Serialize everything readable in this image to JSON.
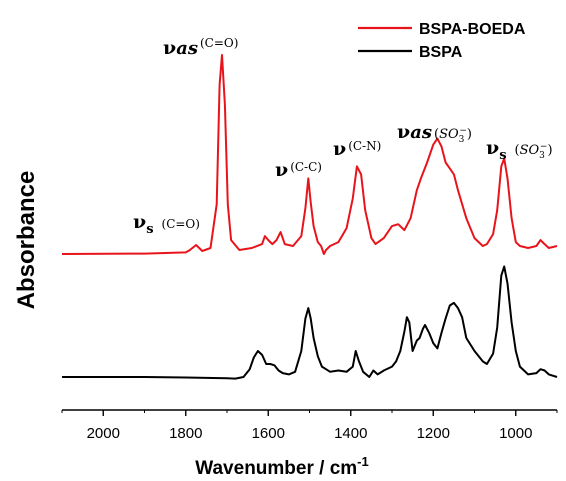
{
  "chart_data": {
    "type": "line",
    "xlabel": "Wavenumber / cm",
    "xlabel_superscript": "-1",
    "ylabel": "Absorbance",
    "xlim": [
      2100,
      900
    ],
    "x_reversed": true,
    "y_ticks_shown": false,
    "grid": false,
    "legend_position": "top-right",
    "xticks": [
      2000,
      1800,
      1600,
      1400,
      1200,
      1000
    ],
    "xtick_labels": [
      "2000",
      "1800",
      "1600",
      "1400",
      "1200",
      "1000"
    ],
    "series": [
      {
        "name": "BSPA-BOEDA",
        "color": "#e8141b",
        "offset": 1.0,
        "x": [
          2100,
          1900,
          1800,
          1790,
          1775,
          1760,
          1740,
          1725,
          1718,
          1712,
          1705,
          1698,
          1690,
          1670,
          1640,
          1615,
          1608,
          1600,
          1590,
          1580,
          1570,
          1560,
          1540,
          1520,
          1510,
          1503,
          1497,
          1490,
          1480,
          1472,
          1465,
          1460,
          1450,
          1430,
          1410,
          1395,
          1385,
          1375,
          1365,
          1350,
          1340,
          1320,
          1300,
          1285,
          1270,
          1255,
          1240,
          1230,
          1215,
          1200,
          1190,
          1180,
          1170,
          1160,
          1150,
          1140,
          1120,
          1100,
          1080,
          1070,
          1055,
          1045,
          1035,
          1028,
          1020,
          1010,
          1000,
          990,
          970,
          950,
          940,
          930,
          920,
          900
        ],
        "y": [
          0.0,
          0.002,
          0.008,
          0.02,
          0.045,
          0.015,
          0.03,
          0.25,
          0.85,
          1.0,
          0.75,
          0.25,
          0.07,
          0.02,
          0.03,
          0.05,
          0.09,
          0.07,
          0.05,
          0.07,
          0.11,
          0.05,
          0.04,
          0.09,
          0.23,
          0.38,
          0.26,
          0.14,
          0.06,
          0.04,
          0.0,
          0.02,
          0.04,
          0.06,
          0.13,
          0.28,
          0.44,
          0.4,
          0.22,
          0.08,
          0.05,
          0.08,
          0.14,
          0.15,
          0.12,
          0.18,
          0.32,
          0.38,
          0.46,
          0.55,
          0.58,
          0.54,
          0.46,
          0.43,
          0.4,
          0.32,
          0.18,
          0.08,
          0.04,
          0.05,
          0.1,
          0.22,
          0.44,
          0.48,
          0.38,
          0.18,
          0.06,
          0.04,
          0.03,
          0.04,
          0.07,
          0.05,
          0.03,
          0.04
        ]
      },
      {
        "name": "BSPA",
        "color": "#000000",
        "offset": 0.0,
        "x": [
          2100,
          1900,
          1800,
          1700,
          1680,
          1660,
          1645,
          1635,
          1625,
          1615,
          1605,
          1595,
          1585,
          1575,
          1565,
          1550,
          1535,
          1520,
          1510,
          1503,
          1497,
          1490,
          1480,
          1470,
          1460,
          1450,
          1430,
          1410,
          1395,
          1388,
          1380,
          1370,
          1355,
          1345,
          1335,
          1320,
          1300,
          1290,
          1280,
          1270,
          1264,
          1258,
          1250,
          1240,
          1233,
          1225,
          1220,
          1210,
          1200,
          1190,
          1180,
          1170,
          1160,
          1150,
          1140,
          1130,
          1120,
          1100,
          1080,
          1070,
          1055,
          1045,
          1035,
          1028,
          1020,
          1010,
          1000,
          990,
          970,
          950,
          940,
          930,
          920,
          900
        ],
        "y": [
          0.0,
          0.0,
          -0.004,
          -0.01,
          -0.012,
          0.0,
          0.06,
          0.15,
          0.2,
          0.17,
          0.1,
          0.1,
          0.09,
          0.05,
          0.03,
          0.02,
          0.04,
          0.2,
          0.45,
          0.53,
          0.45,
          0.3,
          0.16,
          0.08,
          0.06,
          0.04,
          0.05,
          0.04,
          0.08,
          0.2,
          0.12,
          0.04,
          0.0,
          0.05,
          0.02,
          0.05,
          0.08,
          0.12,
          0.2,
          0.35,
          0.46,
          0.42,
          0.2,
          0.28,
          0.3,
          0.37,
          0.4,
          0.34,
          0.26,
          0.22,
          0.34,
          0.45,
          0.55,
          0.57,
          0.53,
          0.46,
          0.3,
          0.2,
          0.12,
          0.1,
          0.18,
          0.38,
          0.78,
          0.85,
          0.72,
          0.42,
          0.2,
          0.08,
          0.02,
          0.03,
          0.06,
          0.05,
          0.02,
          0.0
        ]
      }
    ],
    "annotations": [
      {
        "symbol": "ν",
        "sub": "s",
        "group": "(C=O)",
        "x": 1790,
        "series": "BSPA-BOEDA"
      },
      {
        "symbol": "ν",
        "sub": "as",
        "group": "(C=O)",
        "x": 1712,
        "series": "BSPA-BOEDA"
      },
      {
        "symbol": "ν",
        "sub": "",
        "group": "(C-C)",
        "x": 1503,
        "series": "BSPA-BOEDA"
      },
      {
        "symbol": "ν",
        "sub": "",
        "group": "(C-N)",
        "x": 1385,
        "series": "BSPA-BOEDA"
      },
      {
        "symbol": "ν",
        "sub": "as",
        "group": "(SO3-)",
        "x": 1190,
        "series": "BSPA-BOEDA"
      },
      {
        "symbol": "ν",
        "sub": "s",
        "group": "(SO3-)",
        "x": 1030,
        "series": "BSPA-BOEDA"
      }
    ]
  }
}
